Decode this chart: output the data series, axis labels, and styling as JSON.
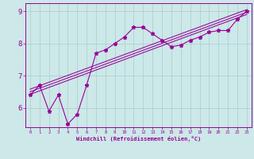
{
  "xlabel": "Windchill (Refroidissement éolien,°C)",
  "bg_color": "#cce8e8",
  "line_color": "#990099",
  "grid_color": "#aacccc",
  "xlim": [
    -0.5,
    23.5
  ],
  "ylim": [
    5.4,
    9.25
  ],
  "yticks": [
    6,
    7,
    8,
    9
  ],
  "xticks": [
    0,
    1,
    2,
    3,
    4,
    5,
    6,
    7,
    8,
    9,
    10,
    11,
    12,
    13,
    14,
    15,
    16,
    17,
    18,
    19,
    20,
    21,
    22,
    23
  ],
  "curve_x": [
    0,
    1,
    2,
    3,
    4,
    5,
    6,
    7,
    8,
    9,
    10,
    11,
    12,
    13,
    14,
    15,
    16,
    17,
    18,
    19,
    20,
    21,
    22,
    23
  ],
  "curve_y": [
    6.4,
    6.7,
    5.9,
    6.4,
    5.5,
    5.8,
    6.7,
    7.7,
    7.8,
    8.0,
    8.2,
    8.5,
    8.5,
    8.3,
    8.1,
    7.9,
    7.95,
    8.1,
    8.2,
    8.35,
    8.4,
    8.4,
    8.75,
    9.0
  ],
  "reg_lines": [
    {
      "x0": 0,
      "y0": 6.58,
      "x1": 23,
      "y1": 9.05
    },
    {
      "x0": 0,
      "y0": 6.42,
      "x1": 23,
      "y1": 8.9
    },
    {
      "x0": 0,
      "y0": 6.5,
      "x1": 23,
      "y1": 8.97
    }
  ]
}
